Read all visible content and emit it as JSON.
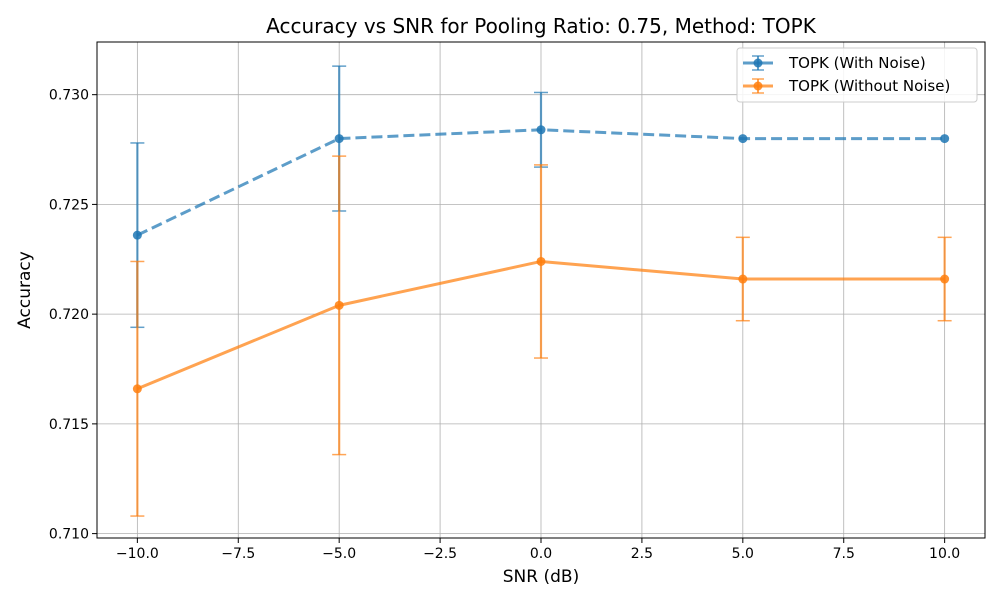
{
  "chart_data": {
    "type": "line",
    "title": "Accuracy vs SNR for Pooling Ratio: 0.75, Method: TOPK",
    "xlabel": "SNR (dB)",
    "ylabel": "Accuracy",
    "xlim": [
      -11.0,
      11.0
    ],
    "ylim": [
      0.7098,
      0.7324
    ],
    "xticks": [
      -10.0,
      -7.5,
      -5.0,
      -2.5,
      0.0,
      2.5,
      5.0,
      7.5,
      10.0
    ],
    "xtick_labels": [
      "−10.0",
      "−7.5",
      "−5.0",
      "−2.5",
      "0.0",
      "2.5",
      "5.0",
      "7.5",
      "10.0"
    ],
    "yticks": [
      0.71,
      0.715,
      0.72,
      0.725,
      0.73
    ],
    "ytick_labels": [
      "0.710",
      "0.715",
      "0.720",
      "0.725",
      "0.730"
    ],
    "grid": true,
    "legend_position": "top-right",
    "x": [
      -10,
      -5,
      0,
      5,
      10
    ],
    "series": [
      {
        "name": "TOPK (With Noise)",
        "color": "#1f77b4",
        "line_style": "dashed",
        "values": [
          0.7236,
          0.728,
          0.7284,
          0.728,
          0.728
        ],
        "error": [
          0.0042,
          0.0033,
          0.0017,
          0.0,
          0.0
        ]
      },
      {
        "name": "TOPK (Without Noise)",
        "color": "#ff7f0e",
        "line_style": "solid",
        "values": [
          0.7166,
          0.7204,
          0.7224,
          0.7216,
          0.7216
        ],
        "error": [
          0.0058,
          0.0068,
          0.0044,
          0.0019,
          0.0019
        ]
      }
    ]
  }
}
